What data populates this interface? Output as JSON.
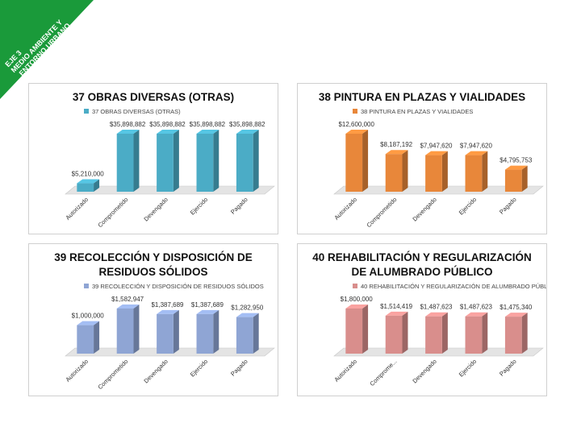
{
  "banner": {
    "lines": [
      "EJE 3",
      "MEDIO AMBIENTE Y",
      "ENTORNO URBANO"
    ]
  },
  "chart_data": [
    {
      "type": "bar",
      "title": "37 OBRAS DIVERSAS (OTRAS)",
      "categories": [
        "Autorizado",
        "Comprometido",
        "Devengado",
        "Ejercido",
        "Pagado"
      ],
      "series": [
        {
          "name": "37 OBRAS DIVERSAS (OTRAS)",
          "color": "#4bacc6",
          "values": [
            5210000,
            35898882,
            35898882,
            35898882,
            35898882
          ],
          "value_labels": [
            "$5,210,000",
            "$35,898,882",
            "$35,898,882",
            "$35,898,882",
            "$35,898,882"
          ]
        }
      ]
    },
    {
      "type": "bar",
      "title": "38 PINTURA EN PLAZAS Y VIALIDADES",
      "categories": [
        "Autorizado",
        "Comprometido",
        "Devengado",
        "Ejercido",
        "Pagado"
      ],
      "series": [
        {
          "name": "38 PINTURA EN PLAZAS Y VIALIDADES",
          "color": "#e8873a",
          "values": [
            12600000,
            8187192,
            7947620,
            7947620,
            4795753
          ],
          "value_labels": [
            "$12,600,000",
            "$8,187,192",
            "$7,947,620",
            "$7,947,620",
            "$4,795,753"
          ]
        }
      ]
    },
    {
      "type": "bar",
      "title": "39 RECOLECCIÓN Y DISPOSICIÓN DE RESIDUOS SÓLIDOS",
      "categories": [
        "Autorizado",
        "Comprometido",
        "Devengado",
        "Ejercido",
        "Pagado"
      ],
      "series": [
        {
          "name": "39 RECOLECCIÓN Y DISPOSICIÓN DE RESIDUOS SÓLIDOS",
          "color": "#8fa5d4",
          "values": [
            1000000,
            1582947,
            1387689,
            1387689,
            1282950
          ],
          "value_labels": [
            "$1,000,000",
            "$1,582,947",
            "$1,387,689",
            "$1,387,689",
            "$1,282,950"
          ]
        }
      ]
    },
    {
      "type": "bar",
      "title": "40 REHABILITACIÓN Y REGULARIZACIÓN DE ALUMBRADO PÚBLICO",
      "categories": [
        "Autorizado",
        "Comprome...",
        "Devengado",
        "Ejercido",
        "Pagado"
      ],
      "series": [
        {
          "name": "40 REHABILITACIÓN Y REGULARIZACIÓN DE ALUMBRADO PÚBLICO",
          "color": "#d98e8c",
          "values": [
            1800000,
            1514419,
            1487623,
            1487623,
            1475340
          ],
          "value_labels": [
            "$1,800,000",
            "$1,514,419",
            "$1,487,623",
            "$1,487,623",
            "$1,475,340"
          ]
        }
      ]
    }
  ]
}
